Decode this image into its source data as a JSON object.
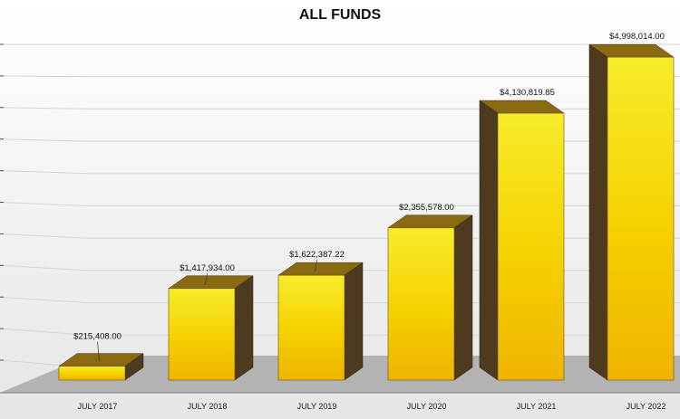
{
  "chart_data": {
    "type": "bar",
    "title": "ALL FUNDS",
    "xlabel": "",
    "ylabel": "",
    "categories": [
      "JULY 2017",
      "JULY 2018",
      "JULY 2019",
      "JULY 2020",
      "JULY 2021",
      "JULY 2022"
    ],
    "values": [
      215408.0,
      1417934.0,
      1622387.22,
      2355578.0,
      4130819.85,
      4998014.0
    ],
    "data_labels": [
      "$215,408.00",
      "$1,417,934.00",
      "$1,622,387.22",
      "$2,355,578.00",
      "$4,130,819.85",
      "$4,998,014.00"
    ],
    "ylim": [
      0,
      5000000
    ],
    "grid": true,
    "style": "3d-column",
    "colors": {
      "bar_face": "#f5c800",
      "bar_face_light": "#f7ec2a",
      "bar_side": "#4e3a1e",
      "bar_top_dark": "#8a6a10",
      "floor": "#b3b3b3",
      "grid": "#d4d4d4"
    }
  }
}
